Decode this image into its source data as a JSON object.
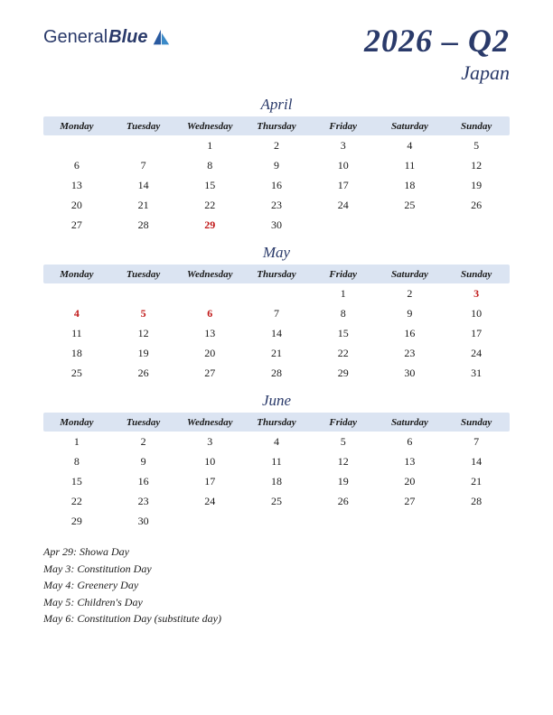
{
  "colors": {
    "brand": "#2a3a6a",
    "header_bg": "#dbe4f2",
    "holiday": "#c01818",
    "background": "#ffffff",
    "text": "#1a1a1a"
  },
  "logo": {
    "part1": "General",
    "part2": "Blue"
  },
  "title": "2026 – Q2",
  "subtitle": "Japan",
  "day_headers": [
    "Monday",
    "Tuesday",
    "Wednesday",
    "Thursday",
    "Friday",
    "Saturday",
    "Sunday"
  ],
  "months": [
    {
      "name": "April",
      "weeks": [
        [
          "",
          "",
          "1",
          "2",
          "3",
          "4",
          "5"
        ],
        [
          "6",
          "7",
          "8",
          "9",
          "10",
          "11",
          "12"
        ],
        [
          "13",
          "14",
          "15",
          "16",
          "17",
          "18",
          "19"
        ],
        [
          "20",
          "21",
          "22",
          "23",
          "24",
          "25",
          "26"
        ],
        [
          "27",
          "28",
          "29",
          "30",
          "",
          "",
          ""
        ]
      ],
      "holidays": [
        "29"
      ]
    },
    {
      "name": "May",
      "weeks": [
        [
          "",
          "",
          "",
          "",
          "1",
          "2",
          "3"
        ],
        [
          "4",
          "5",
          "6",
          "7",
          "8",
          "9",
          "10"
        ],
        [
          "11",
          "12",
          "13",
          "14",
          "15",
          "16",
          "17"
        ],
        [
          "18",
          "19",
          "20",
          "21",
          "22",
          "23",
          "24"
        ],
        [
          "25",
          "26",
          "27",
          "28",
          "29",
          "30",
          "31"
        ]
      ],
      "holidays": [
        "3",
        "4",
        "5",
        "6"
      ]
    },
    {
      "name": "June",
      "weeks": [
        [
          "1",
          "2",
          "3",
          "4",
          "5",
          "6",
          "7"
        ],
        [
          "8",
          "9",
          "10",
          "11",
          "12",
          "13",
          "14"
        ],
        [
          "15",
          "16",
          "17",
          "18",
          "19",
          "20",
          "21"
        ],
        [
          "22",
          "23",
          "24",
          "25",
          "26",
          "27",
          "28"
        ],
        [
          "29",
          "30",
          "",
          "",
          "",
          "",
          ""
        ]
      ],
      "holidays": []
    }
  ],
  "holiday_list": [
    "Apr 29: Showa Day",
    "May 3: Constitution Day",
    "May 4: Greenery Day",
    "May 5: Children's Day",
    "May 6: Constitution Day (substitute day)"
  ]
}
